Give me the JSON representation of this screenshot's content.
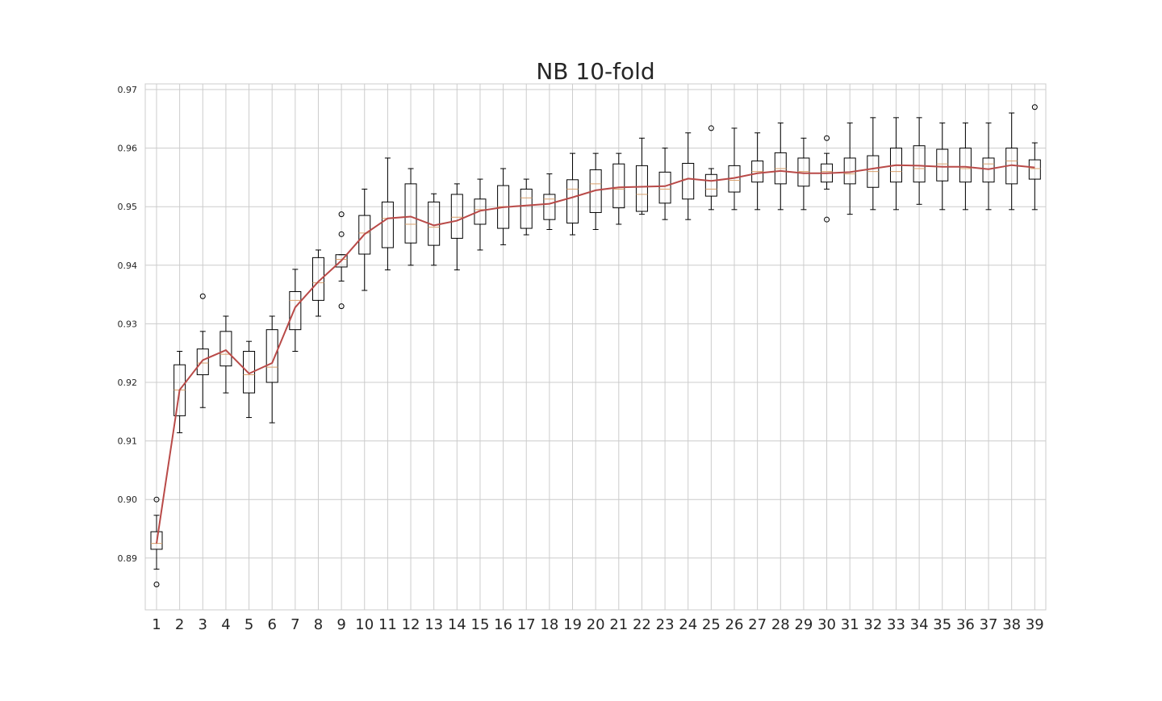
{
  "chart_data": {
    "type": "box",
    "title": "NB 10-fold",
    "xlabel": "",
    "ylabel": "",
    "ylim": [
      0.881,
      0.971
    ],
    "grid": true,
    "categories": [
      "1",
      "2",
      "3",
      "4",
      "5",
      "6",
      "7",
      "8",
      "9",
      "10",
      "11",
      "12",
      "13",
      "14",
      "15",
      "16",
      "17",
      "18",
      "19",
      "20",
      "21",
      "22",
      "23",
      "24",
      "25",
      "26",
      "27",
      "28",
      "29",
      "30",
      "31",
      "32",
      "33",
      "34",
      "35",
      "36",
      "37",
      "38",
      "39"
    ],
    "y_ticks": [
      "0.89",
      "0.90",
      "0.91",
      "0.92",
      "0.93",
      "0.94",
      "0.95",
      "0.96",
      "0.97"
    ],
    "colors": {
      "box": "#000000",
      "median": "#d9a06b",
      "mean_line": "#b94a48",
      "grid": "#cccccc",
      "frame": "#cccccc"
    },
    "boxes": [
      {
        "wlo": 0.8881,
        "q1": 0.8915,
        "med": 0.8925,
        "q3": 0.8945,
        "whi": 0.8973,
        "fliers": [
          0.9,
          0.8855
        ]
      },
      {
        "wlo": 0.9114,
        "q1": 0.9143,
        "med": 0.9187,
        "q3": 0.923,
        "whi": 0.9253,
        "fliers": []
      },
      {
        "wlo": 0.9157,
        "q1": 0.9213,
        "med": 0.9233,
        "q3": 0.9257,
        "whi": 0.9287,
        "fliers": [
          0.9347
        ]
      },
      {
        "wlo": 0.9182,
        "q1": 0.9228,
        "med": 0.9248,
        "q3": 0.9287,
        "whi": 0.9313,
        "fliers": []
      },
      {
        "wlo": 0.914,
        "q1": 0.9182,
        "med": 0.9213,
        "q3": 0.9253,
        "whi": 0.927,
        "fliers": []
      },
      {
        "wlo": 0.9131,
        "q1": 0.92,
        "med": 0.9226,
        "q3": 0.929,
        "whi": 0.9313,
        "fliers": []
      },
      {
        "wlo": 0.9253,
        "q1": 0.929,
        "med": 0.934,
        "q3": 0.9355,
        "whi": 0.9393,
        "fliers": []
      },
      {
        "wlo": 0.9313,
        "q1": 0.934,
        "med": 0.937,
        "q3": 0.9413,
        "whi": 0.9426,
        "fliers": []
      },
      {
        "wlo": 0.9373,
        "q1": 0.9397,
        "med": 0.941,
        "q3": 0.9418,
        "whi": 0.9418,
        "fliers": [
          0.9487,
          0.9453,
          0.933
        ]
      },
      {
        "wlo": 0.9357,
        "q1": 0.9419,
        "med": 0.9455,
        "q3": 0.9485,
        "whi": 0.953,
        "fliers": []
      },
      {
        "wlo": 0.9392,
        "q1": 0.943,
        "med": 0.948,
        "q3": 0.9508,
        "whi": 0.9583,
        "fliers": []
      },
      {
        "wlo": 0.94,
        "q1": 0.9438,
        "med": 0.947,
        "q3": 0.9539,
        "whi": 0.9565,
        "fliers": []
      },
      {
        "wlo": 0.94,
        "q1": 0.9434,
        "med": 0.9465,
        "q3": 0.9508,
        "whi": 0.9522,
        "fliers": []
      },
      {
        "wlo": 0.9392,
        "q1": 0.9446,
        "med": 0.9482,
        "q3": 0.9521,
        "whi": 0.9539,
        "fliers": []
      },
      {
        "wlo": 0.9426,
        "q1": 0.947,
        "med": 0.9495,
        "q3": 0.9513,
        "whi": 0.9547,
        "fliers": []
      },
      {
        "wlo": 0.9435,
        "q1": 0.9463,
        "med": 0.95,
        "q3": 0.9536,
        "whi": 0.9565,
        "fliers": []
      },
      {
        "wlo": 0.9452,
        "q1": 0.9463,
        "med": 0.9515,
        "q3": 0.953,
        "whi": 0.9547,
        "fliers": []
      },
      {
        "wlo": 0.9461,
        "q1": 0.9478,
        "med": 0.9513,
        "q3": 0.9521,
        "whi": 0.9556,
        "fliers": []
      },
      {
        "wlo": 0.9452,
        "q1": 0.9472,
        "med": 0.953,
        "q3": 0.9546,
        "whi": 0.9591,
        "fliers": []
      },
      {
        "wlo": 0.9461,
        "q1": 0.949,
        "med": 0.9539,
        "q3": 0.9563,
        "whi": 0.9591,
        "fliers": []
      },
      {
        "wlo": 0.947,
        "q1": 0.9498,
        "med": 0.953,
        "q3": 0.9573,
        "whi": 0.9591,
        "fliers": []
      },
      {
        "wlo": 0.9487,
        "q1": 0.9492,
        "med": 0.9521,
        "q3": 0.957,
        "whi": 0.9617,
        "fliers": []
      },
      {
        "wlo": 0.9478,
        "q1": 0.9506,
        "med": 0.953,
        "q3": 0.9559,
        "whi": 0.96,
        "fliers": []
      },
      {
        "wlo": 0.9478,
        "q1": 0.9513,
        "med": 0.9547,
        "q3": 0.9574,
        "whi": 0.9626,
        "fliers": []
      },
      {
        "wlo": 0.9495,
        "q1": 0.9518,
        "med": 0.953,
        "q3": 0.9555,
        "whi": 0.9565,
        "fliers": [
          0.9634
        ]
      },
      {
        "wlo": 0.9495,
        "q1": 0.9525,
        "med": 0.9545,
        "q3": 0.957,
        "whi": 0.9634,
        "fliers": []
      },
      {
        "wlo": 0.9495,
        "q1": 0.9542,
        "med": 0.956,
        "q3": 0.9578,
        "whi": 0.9626,
        "fliers": []
      },
      {
        "wlo": 0.9495,
        "q1": 0.9539,
        "med": 0.9565,
        "q3": 0.9592,
        "whi": 0.9643,
        "fliers": []
      },
      {
        "wlo": 0.9495,
        "q1": 0.9535,
        "med": 0.956,
        "q3": 0.9583,
        "whi": 0.9617,
        "fliers": []
      },
      {
        "wlo": 0.953,
        "q1": 0.9542,
        "med": 0.956,
        "q3": 0.9573,
        "whi": 0.9591,
        "fliers": [
          0.9617,
          0.9478
        ]
      },
      {
        "wlo": 0.9487,
        "q1": 0.9539,
        "med": 0.9556,
        "q3": 0.9583,
        "whi": 0.9643,
        "fliers": []
      },
      {
        "wlo": 0.9495,
        "q1": 0.9533,
        "med": 0.956,
        "q3": 0.9587,
        "whi": 0.9652,
        "fliers": []
      },
      {
        "wlo": 0.9495,
        "q1": 0.9542,
        "med": 0.956,
        "q3": 0.96,
        "whi": 0.9652,
        "fliers": []
      },
      {
        "wlo": 0.9504,
        "q1": 0.9542,
        "med": 0.9565,
        "q3": 0.9604,
        "whi": 0.9652,
        "fliers": []
      },
      {
        "wlo": 0.9495,
        "q1": 0.9544,
        "med": 0.9573,
        "q3": 0.9598,
        "whi": 0.9643,
        "fliers": []
      },
      {
        "wlo": 0.9495,
        "q1": 0.9542,
        "med": 0.9565,
        "q3": 0.96,
        "whi": 0.9643,
        "fliers": []
      },
      {
        "wlo": 0.9495,
        "q1": 0.9542,
        "med": 0.9573,
        "q3": 0.9583,
        "whi": 0.9643,
        "fliers": []
      },
      {
        "wlo": 0.9495,
        "q1": 0.9539,
        "med": 0.9578,
        "q3": 0.96,
        "whi": 0.966,
        "fliers": []
      },
      {
        "wlo": 0.9495,
        "q1": 0.9547,
        "med": 0.9565,
        "q3": 0.958,
        "whi": 0.9609,
        "fliers": [
          0.967
        ]
      }
    ],
    "mean_line": [
      0.8925,
      0.9187,
      0.9238,
      0.9255,
      0.9215,
      0.9233,
      0.9328,
      0.9372,
      0.9408,
      0.9453,
      0.948,
      0.9483,
      0.9468,
      0.9476,
      0.9493,
      0.9499,
      0.9502,
      0.9505,
      0.9516,
      0.9528,
      0.9533,
      0.9534,
      0.9535,
      0.9548,
      0.9544,
      0.9549,
      0.9557,
      0.9561,
      0.9557,
      0.9557,
      0.9559,
      0.9565,
      0.9571,
      0.957,
      0.9568,
      0.9568,
      0.9564,
      0.9571,
      0.9567
    ]
  }
}
